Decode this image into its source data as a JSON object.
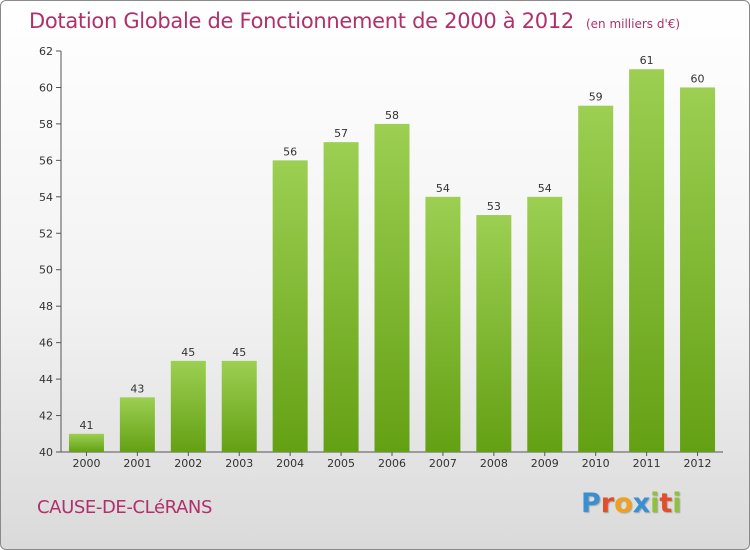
{
  "header": {
    "title": "Dotation Globale de Fonctionnement de 2000 à 2012",
    "subtitle": "(en milliers d'€)"
  },
  "footer": {
    "commune": "CAUSE-DE-CLéRANS",
    "logo_letters": [
      "P",
      "r",
      "o",
      "x",
      "i",
      "t",
      "i"
    ]
  },
  "colors": {
    "bar_light": "#9ccf52",
    "bar_dark": "#64a014",
    "title": "#b0306b",
    "logo": [
      "#3a8fd0",
      "#e04e2a",
      "#f0a020",
      "#3a8fd0",
      "#8fc13e",
      "#e04e2a",
      "#8fc13e"
    ]
  },
  "chart_data": {
    "type": "bar",
    "title": "Dotation Globale de Fonctionnement de 2000 à 2012",
    "subtitle": "(en milliers d'€)",
    "categories": [
      "2000",
      "2001",
      "2002",
      "2003",
      "2004",
      "2005",
      "2006",
      "2007",
      "2008",
      "2009",
      "2010",
      "2011",
      "2012"
    ],
    "values": [
      41,
      43,
      45,
      45,
      56,
      57,
      58,
      54,
      53,
      54,
      59,
      61,
      60
    ],
    "xlabel": "",
    "ylabel": "",
    "ylim": [
      40,
      62
    ],
    "yticks": [
      40,
      42,
      44,
      46,
      48,
      50,
      52,
      54,
      56,
      58,
      60,
      62
    ],
    "grid": false,
    "data_labels": true
  }
}
